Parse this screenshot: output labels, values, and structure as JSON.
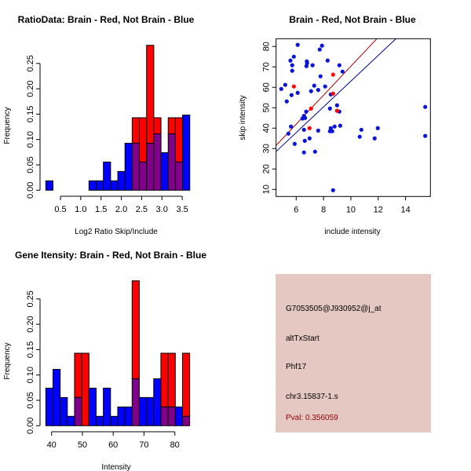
{
  "colors": {
    "brain": "#ff0000",
    "not_brain": "#0000ff",
    "overlap": "#80008a",
    "info_bg": "#e6c8c2",
    "pval": "#8b0000",
    "red_line": "#b00000",
    "blue_line": "#00008b"
  },
  "chart_data": [
    {
      "type": "bar",
      "id": "ratio",
      "title": "RatioData: Brain - Red, Not Brain - Blue",
      "xlabel": "Log2 Ratio Skip/Include",
      "ylabel": "Frequency",
      "bin_start": 0.139,
      "bin_width": 0.1774,
      "xticks": [
        0.5,
        1.0,
        1.5,
        2.0,
        2.5,
        3.0,
        3.5
      ],
      "xtick_labels": [
        "0.5",
        "1.0",
        "1.5",
        "2.0",
        "2.5",
        "3.0",
        "3.5"
      ],
      "yticks": [
        0,
        0.05,
        0.1,
        0.15,
        0.2,
        0.25
      ],
      "ytick_labels": [
        "0.00",
        "0.05",
        "0.10",
        "0.15",
        "0.20",
        "0.25"
      ],
      "series": [
        {
          "name": "Not Brain",
          "color": "blue",
          "values": [
            0.0185,
            0,
            0,
            0,
            0,
            0,
            0.0185,
            0.0185,
            0.0556,
            0.0185,
            0.037,
            0.0926,
            0.0926,
            0.0556,
            0.0926,
            0.1111,
            0.0741,
            0.1111,
            0.0556,
            0.1481
          ]
        },
        {
          "name": "Brain",
          "color": "red",
          "values": [
            0,
            0,
            0,
            0,
            0,
            0,
            0,
            0,
            0,
            0,
            0,
            0,
            0.1429,
            0.1429,
            0.2857,
            0.1429,
            0,
            0.1429,
            0.1429,
            0
          ]
        }
      ]
    },
    {
      "type": "scatter",
      "id": "scatter",
      "title": "Brain - Red, Not Brain - Blue",
      "xlabel": "include intensity",
      "ylabel": "skip intensity",
      "xlim": [
        4.53,
        15.82
      ],
      "ylim": [
        6.54,
        83.8
      ],
      "xticks": [
        6,
        8,
        10,
        12,
        14
      ],
      "xtick_labels": [
        "6",
        "8",
        "10",
        "12",
        "14"
      ],
      "yticks": [
        10,
        20,
        30,
        40,
        50,
        60,
        70,
        80
      ],
      "ytick_labels": [
        "10",
        "20",
        "30",
        "40",
        "50",
        "60",
        "70",
        "80"
      ],
      "series": [
        {
          "name": "Not Brain",
          "color": "blue",
          "points": [
            [
              4.91,
              59.2
            ],
            [
              5.2,
              61.2
            ],
            [
              5.31,
              53.1
            ],
            [
              5.43,
              37.3
            ],
            [
              5.58,
              73.1
            ],
            [
              5.62,
              40.8
            ],
            [
              5.66,
              56.2
            ],
            [
              5.71,
              70.8
            ],
            [
              5.71,
              68.1
            ],
            [
              5.83,
              75
            ],
            [
              5.89,
              32.3
            ],
            [
              6.11,
              80.8
            ],
            [
              6.11,
              57.3
            ],
            [
              6.46,
              44.7
            ],
            [
              6.57,
              46
            ],
            [
              6.57,
              39.2
            ],
            [
              6.57,
              28.1
            ],
            [
              6.63,
              33.8
            ],
            [
              6.65,
              45
            ],
            [
              6.73,
              48.1
            ],
            [
              6.75,
              70.4
            ],
            [
              6.78,
              72.7
            ],
            [
              6.8,
              71.8
            ],
            [
              6.98,
              35
            ],
            [
              7.09,
              58.1
            ],
            [
              7.2,
              70.8
            ],
            [
              7.32,
              60.8
            ],
            [
              7.38,
              28.5
            ],
            [
              7.61,
              58.7
            ],
            [
              7.61,
              38.8
            ],
            [
              7.72,
              78.5
            ],
            [
              7.78,
              65.4
            ],
            [
              7.89,
              80.4
            ],
            [
              8.12,
              60.4
            ],
            [
              8.3,
              73.1
            ],
            [
              8.47,
              49.6
            ],
            [
              8.47,
              38.5
            ],
            [
              8.53,
              56.5
            ],
            [
              8.53,
              40
            ],
            [
              8.64,
              38.5
            ],
            [
              8.7,
              9.6
            ],
            [
              8.81,
              40.8
            ],
            [
              8.99,
              51.2
            ],
            [
              9.16,
              70.8
            ],
            [
              9.16,
              48.1
            ],
            [
              9.22,
              41.2
            ],
            [
              9.39,
              67.7
            ],
            [
              10.65,
              35.8
            ],
            [
              10.77,
              39.2
            ],
            [
              11.74,
              35
            ],
            [
              11.97,
              40
            ],
            [
              15.44,
              50.4
            ],
            [
              15.44,
              36.2
            ]
          ]
        },
        {
          "name": "Brain",
          "color": "red",
          "points": [
            [
              5.83,
              60.4
            ],
            [
              7.09,
              49.6
            ],
            [
              6.98,
              40
            ],
            [
              8.7,
              66.2
            ],
            [
              8.7,
              56.9
            ],
            [
              8.99,
              48.5
            ]
          ]
        }
      ],
      "fit_lines": [
        {
          "name": "Brain fit",
          "color": "red",
          "slope": 7.09,
          "intercept": -0.6
        },
        {
          "name": "Not Brain fit",
          "color": "blue",
          "slope": 6.3,
          "intercept": 0.0
        }
      ]
    },
    {
      "type": "bar",
      "id": "intensity",
      "title": "Gene Itensity: Brain - Red, Not Brain - Blue",
      "xlabel": "Intensity",
      "ylabel": "Frequency",
      "bin_start": 38.12,
      "bin_width": 2.335,
      "xticks": [
        40,
        50,
        60,
        70,
        80
      ],
      "xtick_labels": [
        "40",
        "50",
        "60",
        "70",
        "80"
      ],
      "yticks": [
        0,
        0.05,
        0.1,
        0.15,
        0.2,
        0.25
      ],
      "ytick_labels": [
        "0.00",
        "0.05",
        "0.10",
        "0.15",
        "0.20",
        "0.25"
      ],
      "series": [
        {
          "name": "Not Brain",
          "color": "blue",
          "values": [
            0.0741,
            0.1111,
            0.0556,
            0.0185,
            0.0556,
            0,
            0.0741,
            0.0185,
            0.0741,
            0.0185,
            0.037,
            0.037,
            0.0926,
            0.0556,
            0.0556,
            0.0926,
            0.037,
            0.037,
            0.037,
            0.0185
          ]
        },
        {
          "name": "Brain",
          "color": "red",
          "values": [
            0,
            0,
            0,
            0,
            0.1429,
            0.1429,
            0,
            0,
            0,
            0,
            0,
            0,
            0.2857,
            0,
            0,
            0,
            0.1429,
            0.1429,
            0,
            0.1429
          ]
        }
      ]
    }
  ],
  "info": {
    "probe_id": "G7053505@J930952@j_at",
    "event_type": "altTxStart",
    "gene": "Phf17",
    "location": "chr3.15837-1.s",
    "pval": "Pval: 0.356059"
  }
}
